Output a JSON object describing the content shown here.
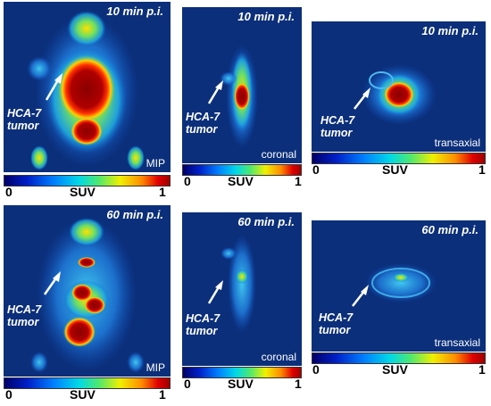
{
  "panels": [
    {
      "time": "10 min p.i.",
      "view": "MIP",
      "tumor": [
        "HCA-7",
        "tumor"
      ]
    },
    {
      "time": "10 min p.i.",
      "view": "coronal",
      "tumor": [
        "HCA-7",
        "tumor"
      ]
    },
    {
      "time": "10 min p.i.",
      "view": "transaxial",
      "tumor": [
        "HCA-7",
        "tumor"
      ]
    },
    {
      "time": "60 min p.i.",
      "view": "MIP",
      "tumor": [
        "HCA-7",
        "tumor"
      ]
    },
    {
      "time": "60 min p.i.",
      "view": "coronal",
      "tumor": [
        "HCA-7",
        "tumor"
      ]
    },
    {
      "time": "60 min p.i.",
      "view": "transaxial",
      "tumor": [
        "HCA-7",
        "tumor"
      ]
    }
  ],
  "colorbar": {
    "min": "0",
    "label": "SUV",
    "max": "1"
  },
  "colors": {
    "background": "#0b2f7a",
    "hot": "#a00000",
    "warm": "#ffd000"
  }
}
